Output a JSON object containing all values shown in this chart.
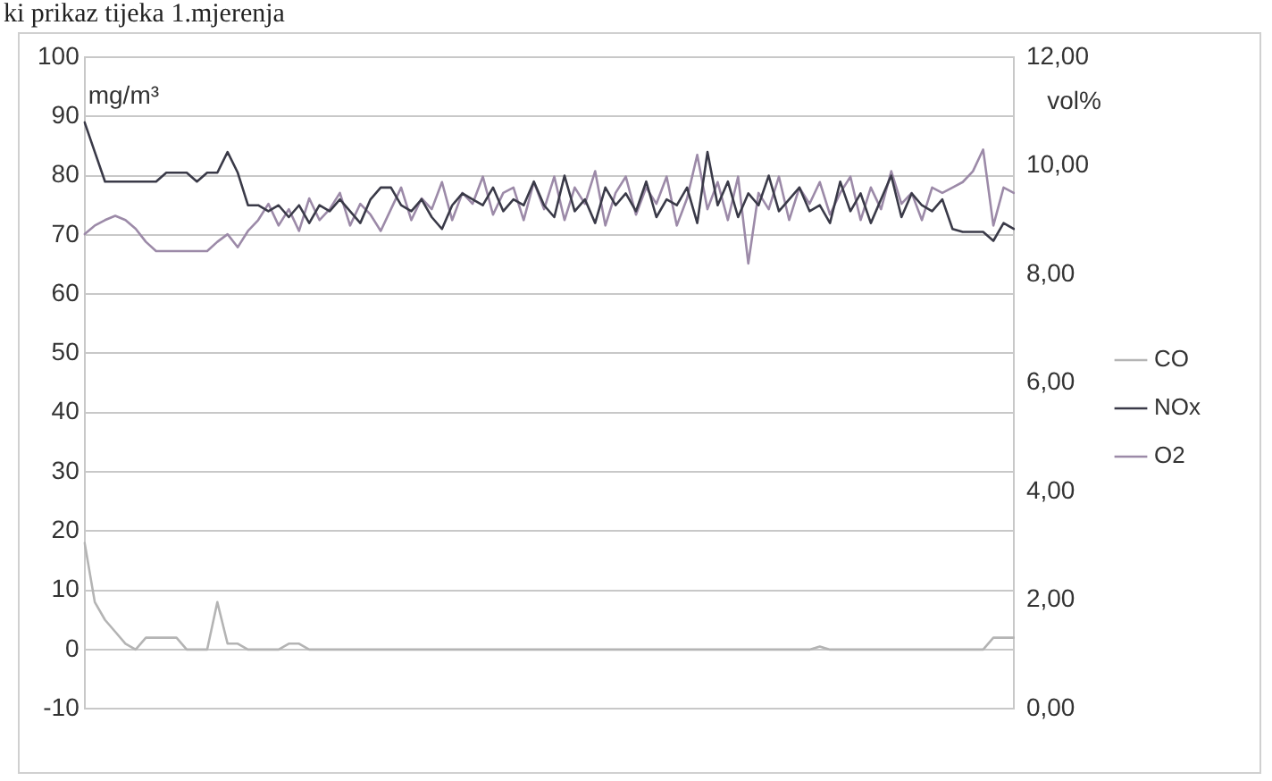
{
  "chart_data": {
    "type": "line",
    "title": "ki prikaz tijeka 1.mjerenja",
    "ylabel": "mg/m³",
    "y2label": "vol%",
    "categories": [
      null,
      null,
      null,
      null,
      null,
      null,
      null,
      null,
      null,
      null,
      null,
      null,
      null,
      null,
      null,
      null,
      null,
      null,
      null,
      null,
      null,
      null,
      null,
      null,
      null,
      null,
      null,
      null,
      null,
      null,
      null,
      null,
      null,
      null,
      null,
      null,
      null,
      null,
      null,
      null,
      null,
      null,
      null,
      null,
      null,
      null,
      null,
      null,
      null,
      null,
      null,
      null,
      null,
      null,
      null,
      null,
      null,
      null,
      null,
      null,
      null,
      null,
      null,
      null,
      null,
      null,
      null,
      null,
      null,
      null,
      null,
      null,
      null,
      null,
      null,
      null,
      null,
      null,
      null,
      null,
      null,
      null,
      null,
      null,
      null,
      null,
      null,
      null,
      null,
      null,
      null,
      null
    ],
    "series": [
      {
        "name": "CO",
        "color": "#b4b4b4",
        "values": [
          18,
          8,
          5,
          3,
          1,
          0,
          2,
          2,
          2,
          2,
          0,
          0,
          0,
          8,
          1,
          1,
          0,
          0,
          0,
          0,
          1,
          1,
          0,
          0,
          0,
          0,
          0,
          0,
          0,
          0,
          0,
          0,
          0,
          0,
          0,
          0,
          0,
          0,
          0,
          0,
          0,
          0,
          0,
          0,
          0,
          0,
          0,
          0,
          0,
          0,
          0,
          0,
          0,
          0,
          0,
          0,
          0,
          0,
          0,
          0,
          0,
          0,
          0,
          0,
          0,
          0,
          0,
          0,
          0,
          0,
          0,
          0,
          0.5,
          0,
          0,
          0,
          0,
          0,
          0,
          0,
          0,
          0,
          0,
          0,
          0,
          0,
          0,
          0,
          0,
          2,
          2,
          2
        ]
      },
      {
        "name": "NOx",
        "color": "#3a3a48",
        "values": [
          89,
          84,
          79,
          79,
          79,
          79,
          79,
          79,
          80.5,
          80.5,
          80.5,
          79,
          80.5,
          80.5,
          84,
          80.5,
          75,
          75,
          74,
          75,
          73,
          75,
          72,
          75,
          74,
          76,
          74,
          72,
          76,
          78,
          78,
          75,
          74,
          76,
          73,
          71,
          75,
          77,
          76,
          75,
          78,
          74,
          76,
          75,
          79,
          75,
          73,
          80,
          74,
          76,
          72,
          78,
          75,
          77,
          74,
          79,
          73,
          76,
          75,
          78,
          72,
          84,
          75,
          79,
          73,
          77,
          75,
          80,
          74,
          76,
          78,
          74,
          75,
          72,
          79,
          74,
          77,
          72,
          76,
          80,
          73,
          77,
          75,
          74,
          76,
          71,
          70.5,
          70.5,
          70.5,
          69,
          72,
          71
        ]
      },
      {
        "name": "O2",
        "color": "#9c8aa8",
        "axis": "y2",
        "values": [
          8.74,
          8.9,
          9.0,
          9.08,
          9.0,
          8.84,
          8.6,
          8.43,
          8.43,
          8.43,
          8.43,
          8.43,
          8.43,
          8.6,
          8.74,
          8.5,
          8.8,
          9.0,
          9.3,
          8.9,
          9.2,
          8.8,
          9.4,
          9.0,
          9.2,
          9.5,
          8.9,
          9.3,
          9.1,
          8.8,
          9.2,
          9.6,
          9.0,
          9.4,
          9.2,
          9.7,
          9.0,
          9.5,
          9.3,
          9.8,
          9.1,
          9.5,
          9.6,
          9.0,
          9.7,
          9.2,
          9.8,
          9.0,
          9.6,
          9.3,
          9.9,
          8.9,
          9.5,
          9.8,
          9.1,
          9.6,
          9.3,
          9.8,
          8.9,
          9.4,
          10.2,
          9.2,
          9.7,
          9.0,
          9.8,
          8.2,
          9.5,
          9.2,
          9.8,
          9.0,
          9.6,
          9.3,
          9.7,
          9.1,
          9.5,
          9.8,
          9.0,
          9.6,
          9.2,
          9.9,
          9.3,
          9.5,
          9.0,
          9.6,
          9.5,
          9.6,
          9.7,
          9.9,
          10.3,
          8.9,
          9.6,
          9.5
        ]
      }
    ],
    "ylim": [
      -10,
      100
    ],
    "yticks": [
      -10,
      0,
      10,
      20,
      30,
      40,
      50,
      60,
      70,
      80,
      90,
      100
    ],
    "y2lim": [
      0,
      12
    ],
    "y2ticks": [
      {
        "value": 0,
        "label": "0,00"
      },
      {
        "value": 2,
        "label": "2,00"
      },
      {
        "value": 4,
        "label": "4,00"
      },
      {
        "value": 6,
        "label": "6,00"
      },
      {
        "value": 8,
        "label": "8,00"
      },
      {
        "value": 10,
        "label": "10,00"
      },
      {
        "value": 12,
        "label": "12,00"
      }
    ],
    "grid": "y",
    "legend": "right",
    "marker": "none",
    "line_style": "solid"
  }
}
